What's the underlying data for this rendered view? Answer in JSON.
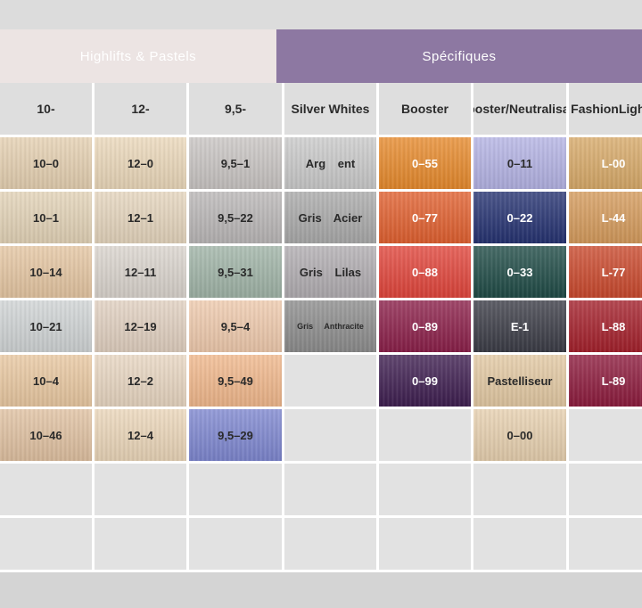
{
  "groups": {
    "pastels": "Highlifts & Pastels",
    "specific": "Spécifiques"
  },
  "columns": [
    {
      "title": "10-"
    },
    {
      "title": "12-"
    },
    {
      "title": "9,5-"
    },
    {
      "title": "Silver Whites"
    },
    {
      "title": "Booster"
    },
    {
      "title": "Booster/ Neutralisant"
    },
    {
      "title": "Fashion Lights"
    }
  ],
  "rows": [
    [
      {
        "label": "10–0",
        "color": "#e4cfb0",
        "text": "dark"
      },
      {
        "label": "12–0",
        "color": "#ead7b9",
        "text": "dark"
      },
      {
        "label": "9,5–1",
        "color": "#c8c4c2",
        "text": "dark"
      },
      {
        "label": "Arg   ent",
        "color": "#c9c9c9",
        "text": "dark"
      },
      {
        "label": "0–55",
        "color": "#e6892b",
        "text": "light"
      },
      {
        "label": "0–11",
        "color": "#b3b2e3",
        "text": "dark"
      },
      {
        "label": "L-00",
        "color": "#d7a968",
        "text": "light"
      }
    ],
    [
      {
        "label": "10–1",
        "color": "#e2d2b6",
        "text": "dark"
      },
      {
        "label": "12–1",
        "color": "#e4d4bc",
        "text": "dark"
      },
      {
        "label": "9,5–22",
        "color": "#b9b6b6",
        "text": "dark"
      },
      {
        "label": "Gris   Acier",
        "color": "#a9a9a9",
        "text": "dark"
      },
      {
        "label": "0–77",
        "color": "#e05f2e",
        "text": "light"
      },
      {
        "label": "0–22",
        "color": "#243170",
        "text": "light"
      },
      {
        "label": "L-44",
        "color": "#d49a5b",
        "text": "light"
      }
    ],
    [
      {
        "label": "10–14",
        "color": "#e4c5a1",
        "text": "dark"
      },
      {
        "label": "12–11",
        "color": "#d9d3cc",
        "text": "dark"
      },
      {
        "label": "9,5–31",
        "color": "#9fb3a6",
        "text": "dark"
      },
      {
        "label": "Gris   Lilas",
        "color": "#b0acb0",
        "text": "dark"
      },
      {
        "label": "0–88",
        "color": "#e0443a",
        "text": "light"
      },
      {
        "label": "0–33",
        "color": "#1e4a45",
        "text": "light"
      },
      {
        "label": "L-77",
        "color": "#c9482c",
        "text": "light"
      }
    ],
    [
      {
        "label": "10–21",
        "color": "#cfd3d4",
        "text": "dark"
      },
      {
        "label": "12–19",
        "color": "#e0cfbf",
        "text": "dark"
      },
      {
        "label": "9,5–4",
        "color": "#eec9ac",
        "text": "dark"
      },
      {
        "label": "Gris   Anthracite",
        "color": "#8c8c8c",
        "text": "dark",
        "small": true
      },
      {
        "label": "0–89",
        "color": "#8a1e48",
        "text": "light"
      },
      {
        "label": "E-1",
        "color": "#3a3b45",
        "text": "light"
      },
      {
        "label": "L-88",
        "color": "#a31f2a",
        "text": "light"
      }
    ],
    [
      {
        "label": "10–4",
        "color": "#e8c7a0",
        "text": "dark"
      },
      {
        "label": "12–2",
        "color": "#e7d5c0",
        "text": "dark"
      },
      {
        "label": "9,5–49",
        "color": "#f0b78b",
        "text": "dark"
      },
      {
        "label": "",
        "color": "",
        "text": "dark"
      },
      {
        "label": "0–99",
        "color": "#3d1d4f",
        "text": "light"
      },
      {
        "label": "Pastelliseur",
        "color": "#e2c8a2",
        "text": "dark"
      },
      {
        "label": "L-89",
        "color": "#8c1a3c",
        "text": "light"
      }
    ],
    [
      {
        "label": "10–46",
        "color": "#dfc0a0",
        "text": "dark"
      },
      {
        "label": "12–4",
        "color": "#ead5b8",
        "text": "dark"
      },
      {
        "label": "9,5–29",
        "color": "#7d86cf",
        "text": "dark"
      },
      {
        "label": "",
        "color": "",
        "text": "dark"
      },
      {
        "label": "",
        "color": "",
        "text": "dark"
      },
      {
        "label": "0–00",
        "color": "#e6cfae",
        "text": "dark"
      },
      {
        "label": "",
        "color": "",
        "text": "dark"
      }
    ]
  ],
  "empty_rows": 2
}
